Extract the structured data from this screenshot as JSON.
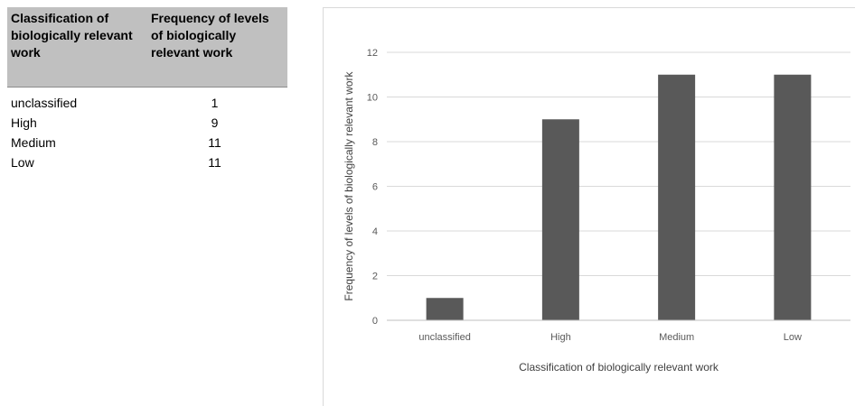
{
  "table": {
    "headers": [
      "Classification of biologically relevant work",
      "Frequency of levels of biologically relevant work"
    ],
    "rows": [
      {
        "label": "unclassified",
        "value": "1"
      },
      {
        "label": "High",
        "value": "9"
      },
      {
        "label": "Medium",
        "value": "11"
      },
      {
        "label": "Low",
        "value": "11"
      }
    ]
  },
  "chart_data": {
    "type": "bar",
    "categories": [
      "unclassified",
      "High",
      "Medium",
      "Low"
    ],
    "values": [
      1,
      9,
      11,
      11
    ],
    "title": "",
    "xlabel": "Classification of biologically relevant work",
    "ylabel": "Frequency of levels of biologically relevant work",
    "ylim": [
      0,
      12
    ],
    "yticks": [
      0,
      2,
      4,
      6,
      8,
      10,
      12
    ],
    "grid": true,
    "bar_color": "#595959",
    "grid_color": "#d9d9d9"
  }
}
